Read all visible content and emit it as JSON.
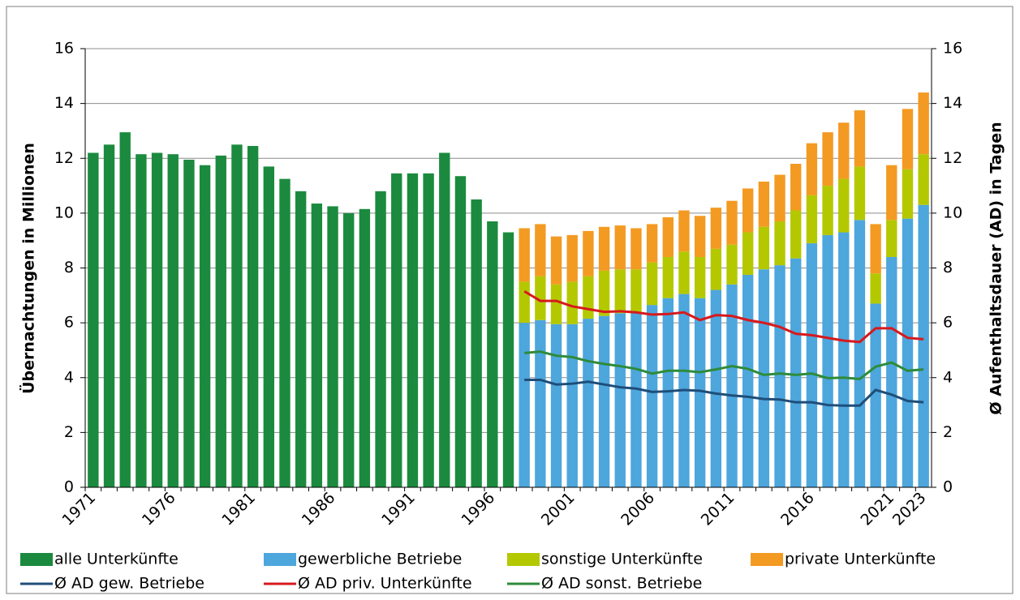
{
  "chart_data": {
    "type": "bar",
    "y_label": "Übernachtungen in Millionen",
    "y2_label": "Ø Aufenthaltsdauer (AD) in Tagen",
    "categories": [
      "1971",
      null,
      null,
      null,
      null,
      "1976",
      null,
      null,
      null,
      null,
      "1981",
      null,
      null,
      null,
      null,
      "1986",
      null,
      null,
      null,
      null,
      "1991",
      null,
      null,
      null,
      null,
      "1996",
      null,
      null,
      null,
      null,
      "2001",
      null,
      null,
      null,
      null,
      "2006",
      null,
      null,
      null,
      null,
      "2011",
      null,
      null,
      null,
      null,
      "2016",
      null,
      null,
      null,
      null,
      "2021",
      null,
      "2023"
    ],
    "ylim": [
      0,
      16
    ],
    "yticks": [
      0,
      2,
      4,
      6,
      8,
      10,
      12,
      14,
      16
    ],
    "y2lim": [
      0,
      16
    ],
    "y2ticks": [
      0,
      2,
      4,
      6,
      8,
      10,
      12,
      14,
      16
    ],
    "grid": true,
    "series": [
      {
        "name": "alle Unterkünfte",
        "type": "bar",
        "color": "#1b8a3e",
        "values": [
          12.2,
          12.5,
          12.95,
          12.15,
          12.2,
          12.15,
          11.95,
          11.75,
          12.1,
          12.5,
          12.45,
          11.7,
          11.25,
          10.8,
          10.35,
          10.25,
          10.0,
          10.15,
          10.8,
          11.45,
          11.45,
          11.45,
          12.2,
          11.35,
          10.5,
          9.7,
          9.3,
          null,
          null,
          null,
          null,
          null,
          null,
          null,
          null,
          null,
          null,
          null,
          null,
          null,
          null,
          null,
          null,
          null,
          null,
          null,
          null,
          null,
          null,
          null,
          null,
          null,
          null
        ]
      },
      {
        "name": "gewerbliche Betriebe",
        "type": "bar",
        "stack": true,
        "color": "#4da6dc",
        "values": [
          null,
          null,
          null,
          null,
          null,
          null,
          null,
          null,
          null,
          null,
          null,
          null,
          null,
          null,
          null,
          null,
          null,
          null,
          null,
          null,
          null,
          null,
          null,
          null,
          null,
          null,
          null,
          6.0,
          6.1,
          5.95,
          5.95,
          6.15,
          6.25,
          6.35,
          6.35,
          6.65,
          6.9,
          7.05,
          6.9,
          7.2,
          7.4,
          7.75,
          7.95,
          8.1,
          8.35,
          8.9,
          9.2,
          9.3,
          9.75,
          6.7,
          8.4,
          9.8,
          10.3
        ]
      },
      {
        "name": "sonstige Unterkünfte",
        "type": "bar",
        "stack": true,
        "color": "#b4c800",
        "values": [
          null,
          null,
          null,
          null,
          null,
          null,
          null,
          null,
          null,
          null,
          null,
          null,
          null,
          null,
          null,
          null,
          null,
          null,
          null,
          null,
          null,
          null,
          null,
          null,
          null,
          null,
          null,
          1.5,
          1.6,
          1.45,
          1.55,
          1.55,
          1.65,
          1.6,
          1.6,
          1.55,
          1.5,
          1.55,
          1.5,
          1.5,
          1.45,
          1.55,
          1.55,
          1.6,
          1.75,
          1.75,
          1.8,
          1.95,
          1.95,
          1.1,
          1.35,
          1.8,
          1.85
        ]
      },
      {
        "name": "private Unterkünfte",
        "type": "bar",
        "stack": true,
        "color": "#f39a22",
        "values": [
          null,
          null,
          null,
          null,
          null,
          null,
          null,
          null,
          null,
          null,
          null,
          null,
          null,
          null,
          null,
          null,
          null,
          null,
          null,
          null,
          null,
          null,
          null,
          null,
          null,
          null,
          null,
          1.95,
          1.9,
          1.75,
          1.7,
          1.65,
          1.6,
          1.6,
          1.5,
          1.4,
          1.45,
          1.5,
          1.5,
          1.5,
          1.6,
          1.6,
          1.65,
          1.7,
          1.7,
          1.9,
          1.95,
          2.05,
          2.05,
          1.8,
          2.0,
          2.2,
          2.25
        ]
      },
      {
        "name": "Ø AD gew. Betriebe",
        "type": "line",
        "axis": "y2",
        "color": "#1f4e79",
        "values": [
          null,
          null,
          null,
          null,
          null,
          null,
          null,
          null,
          null,
          null,
          null,
          null,
          null,
          null,
          null,
          null,
          null,
          null,
          null,
          null,
          null,
          null,
          null,
          null,
          null,
          null,
          null,
          3.92,
          3.92,
          3.75,
          3.78,
          3.85,
          3.75,
          3.65,
          3.6,
          3.48,
          3.5,
          3.55,
          3.52,
          3.42,
          3.35,
          3.3,
          3.22,
          3.2,
          3.1,
          3.1,
          3.0,
          2.98,
          2.98,
          3.55,
          3.38,
          3.15,
          3.1
        ]
      },
      {
        "name": "Ø AD priv. Unterkünfte",
        "type": "line",
        "axis": "y2",
        "color": "#d7191c",
        "values": [
          null,
          null,
          null,
          null,
          null,
          null,
          null,
          null,
          null,
          null,
          null,
          null,
          null,
          null,
          null,
          null,
          null,
          null,
          null,
          null,
          null,
          null,
          null,
          null,
          null,
          null,
          null,
          7.15,
          6.8,
          6.8,
          6.6,
          6.5,
          6.4,
          6.42,
          6.38,
          6.3,
          6.32,
          6.38,
          6.1,
          6.28,
          6.25,
          6.1,
          6.0,
          5.85,
          5.6,
          5.55,
          5.45,
          5.35,
          5.3,
          5.8,
          5.8,
          5.45,
          5.4
        ]
      },
      {
        "name": "Ø AD sonst. Betriebe",
        "type": "line",
        "axis": "y2",
        "color": "#2e8b3a",
        "values": [
          null,
          null,
          null,
          null,
          null,
          null,
          null,
          null,
          null,
          null,
          null,
          null,
          null,
          null,
          null,
          null,
          null,
          null,
          null,
          null,
          null,
          null,
          null,
          null,
          null,
          null,
          null,
          4.9,
          4.95,
          4.8,
          4.75,
          4.6,
          4.5,
          4.42,
          4.32,
          4.15,
          4.25,
          4.25,
          4.2,
          4.3,
          4.42,
          4.32,
          4.1,
          4.15,
          4.1,
          4.15,
          3.98,
          4.0,
          3.95,
          4.4,
          4.55,
          4.25,
          4.3
        ]
      }
    ]
  }
}
